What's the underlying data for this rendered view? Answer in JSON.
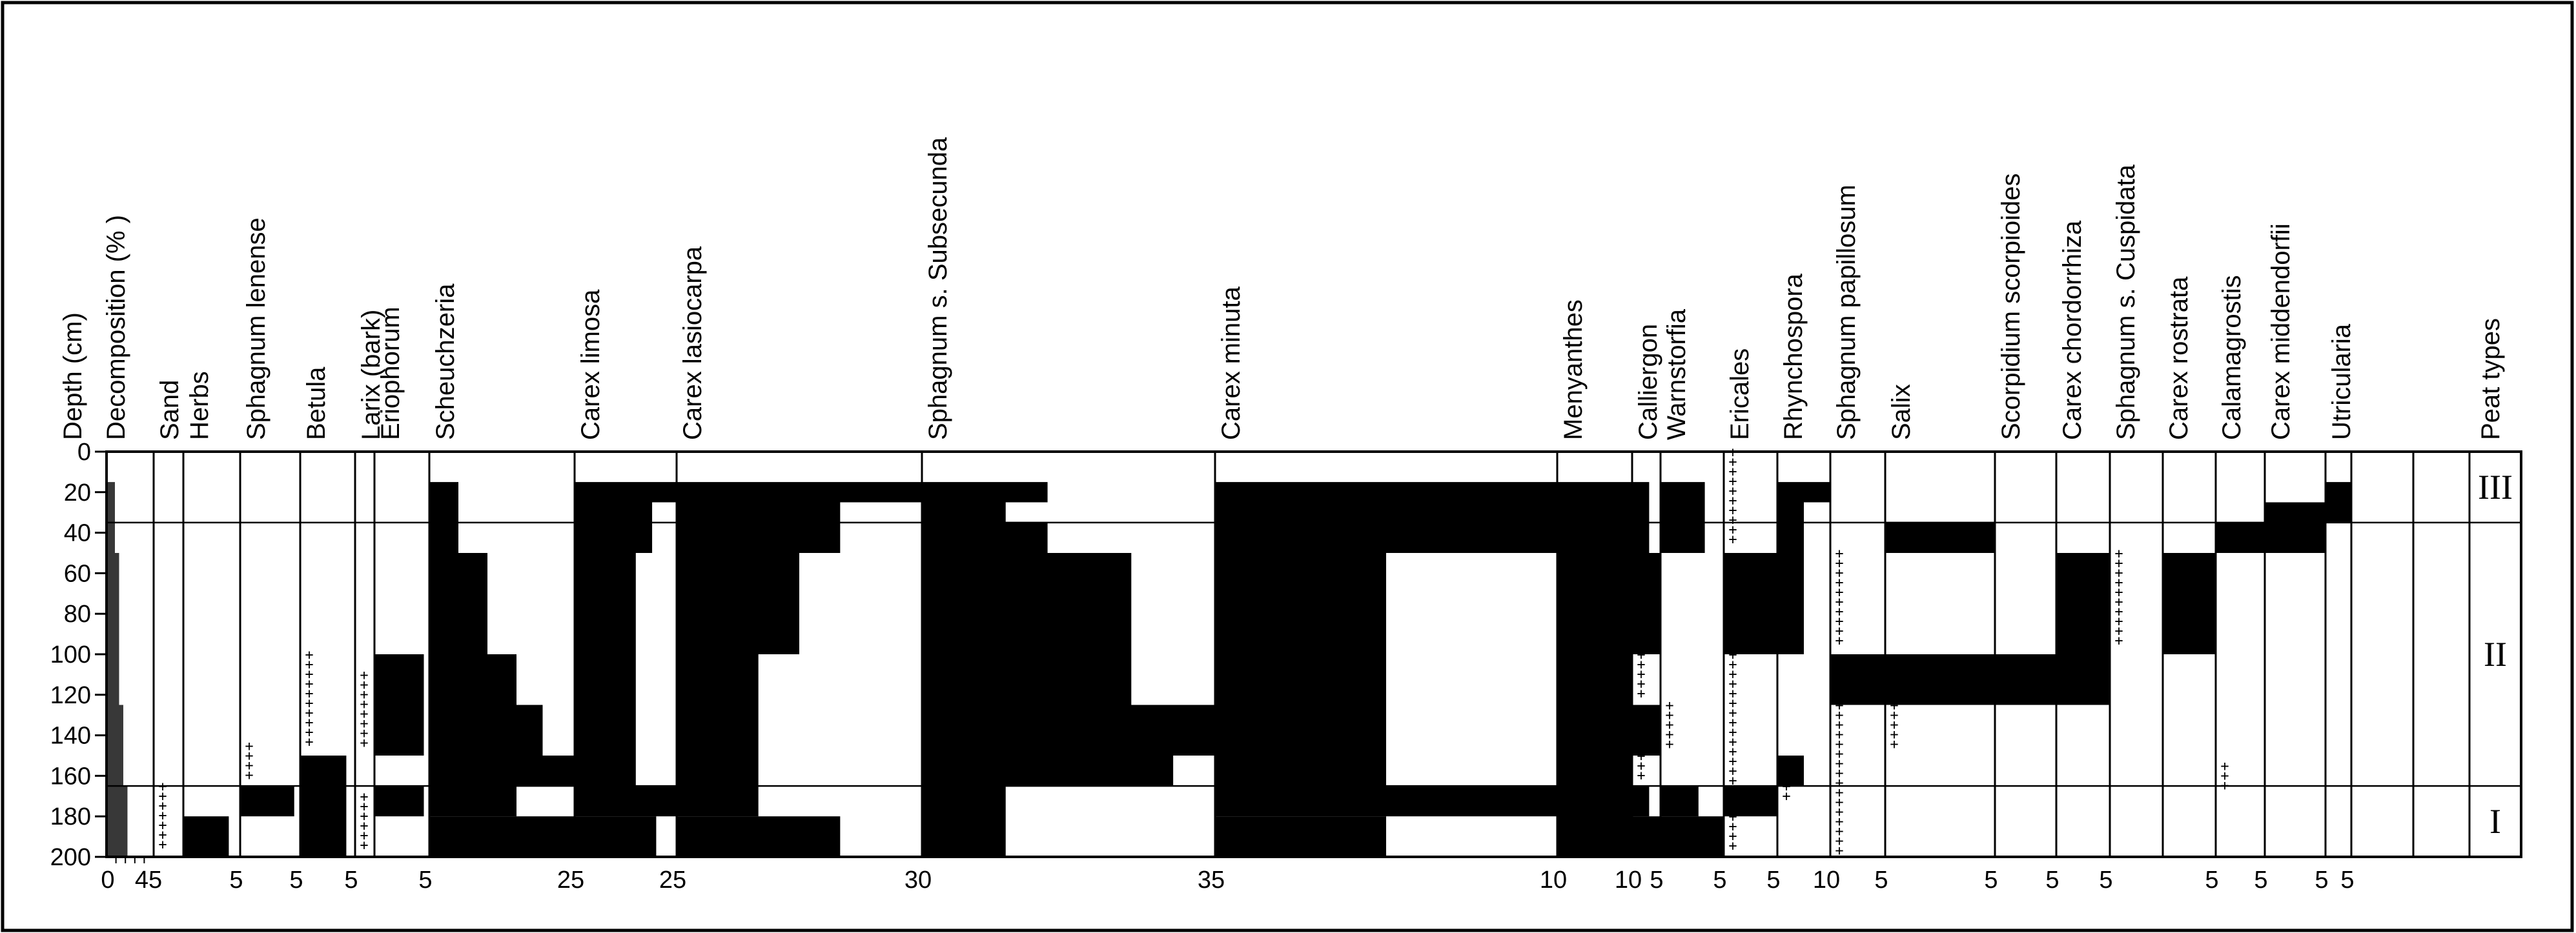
{
  "chart_data": {
    "type": "peat macrofossil stratigraphic diagram",
    "title": "",
    "y_axis": {
      "label": "Depth (cm)",
      "ticks": [
        0,
        20,
        40,
        60,
        80,
        100,
        120,
        140,
        160,
        180,
        200
      ],
      "range": [
        0,
        200
      ]
    },
    "zone_boundaries_cm": [
      35,
      165
    ],
    "peat_types": [
      {
        "label": "III",
        "from": 0,
        "to": 35
      },
      {
        "label": "II",
        "from": 35,
        "to": 165
      },
      {
        "label": "I",
        "from": 165,
        "to": 200
      }
    ],
    "decomposition": {
      "label": "Decomposition (% )",
      "axis_labels": [
        "0",
        "45"
      ],
      "max": 45,
      "steps": [
        {
          "from": 15,
          "to": 50,
          "value": 8
        },
        {
          "from": 50,
          "to": 125,
          "value": 12
        },
        {
          "from": 125,
          "to": 165,
          "value": 16
        },
        {
          "from": 165,
          "to": 200,
          "value": 20
        }
      ]
    },
    "taxa": [
      {
        "name": "Sand",
        "axis": "",
        "max": 5,
        "segments": [],
        "trace": [
          {
            "from": 165,
            "to": 200
          }
        ]
      },
      {
        "name": "Herbs",
        "axis": "5",
        "max": 5,
        "segments": [
          {
            "from": 180,
            "to": 200,
            "value": 4
          }
        ],
        "trace": []
      },
      {
        "name": "Sphagnum lenense",
        "axis": "5",
        "max": 5,
        "segments": [
          {
            "from": 165,
            "to": 180,
            "value": 4.5
          }
        ],
        "trace": [
          {
            "from": 145,
            "to": 165
          }
        ]
      },
      {
        "name": "Betula",
        "axis": "5",
        "max": 5,
        "segments": [
          {
            "from": 150,
            "to": 200,
            "value": 4.2
          }
        ],
        "trace": [
          {
            "from": 100,
            "to": 150
          }
        ]
      },
      {
        "name": "Larix (bark)",
        "axis": "",
        "max": 5,
        "segments": [],
        "trace": [
          {
            "from": 110,
            "to": 150
          },
          {
            "from": 170,
            "to": 200
          }
        ]
      },
      {
        "name": "Eriophorum",
        "axis": "5",
        "max": 5,
        "segments": [
          {
            "from": 100,
            "to": 150,
            "value": 4.5
          },
          {
            "from": 165,
            "to": 180,
            "value": 4.5
          }
        ],
        "trace": []
      },
      {
        "name": "Scheuchzeria",
        "axis": "25",
        "max": 25,
        "segments": [
          {
            "from": 15,
            "to": 50,
            "value": 5
          },
          {
            "from": 50,
            "to": 100,
            "value": 10
          },
          {
            "from": 100,
            "to": 125,
            "value": 15
          },
          {
            "from": 125,
            "to": 150,
            "value": 19.5
          },
          {
            "from": 150,
            "to": 165,
            "value": 25
          },
          {
            "from": 165,
            "to": 180,
            "value": 15
          },
          {
            "from": 180,
            "to": 200,
            "value": 25
          }
        ],
        "trace": []
      },
      {
        "name": "Carex limosa",
        "axis": "25",
        "max": 25,
        "segments": [
          {
            "from": 15,
            "to": 25,
            "value": 25
          },
          {
            "from": 25,
            "to": 50,
            "value": 19
          },
          {
            "from": 50,
            "to": 165,
            "value": 15
          },
          {
            "from": 165,
            "to": 180,
            "value": 25
          },
          {
            "from": 180,
            "to": 200,
            "value": 20
          }
        ],
        "trace": []
      },
      {
        "name": "Carex lasiocarpa",
        "axis": "30",
        "max": 30,
        "segments": [
          {
            "from": 15,
            "to": 25,
            "value": 30
          },
          {
            "from": 25,
            "to": 50,
            "value": 20
          },
          {
            "from": 50,
            "to": 100,
            "value": 15
          },
          {
            "from": 100,
            "to": 180,
            "value": 10
          },
          {
            "from": 180,
            "to": 200,
            "value": 20
          }
        ],
        "trace": []
      },
      {
        "name": "Sphagnum s. Subsecunda",
        "axis": "35",
        "max": 35,
        "segments": [
          {
            "from": 15,
            "to": 25,
            "value": 15
          },
          {
            "from": 25,
            "to": 35,
            "value": 10
          },
          {
            "from": 35,
            "to": 50,
            "value": 15
          },
          {
            "from": 50,
            "to": 125,
            "value": 25
          },
          {
            "from": 125,
            "to": 150,
            "value": 35
          },
          {
            "from": 150,
            "to": 165,
            "value": 30
          },
          {
            "from": 165,
            "to": 200,
            "value": 10
          }
        ],
        "trace": []
      },
      {
        "name": "Carex minuta",
        "axis": "10",
        "max": 10,
        "segments": [
          {
            "from": 15,
            "to": 50,
            "value": 10
          },
          {
            "from": 50,
            "to": 165,
            "value": 5
          },
          {
            "from": 165,
            "to": 180,
            "value": 10
          },
          {
            "from": 180,
            "to": 200,
            "value": 5
          }
        ],
        "trace": []
      },
      {
        "name": "Menyanthes",
        "axis": "10",
        "max": 10,
        "segments": [
          {
            "from": 15,
            "to": 200,
            "value": 10
          }
        ],
        "trace": []
      },
      {
        "name": "Calliergon",
        "axis": "5",
        "max": 5,
        "segments": [
          {
            "from": 15,
            "to": 50,
            "value": 3
          },
          {
            "from": 50,
            "to": 100,
            "value": 5
          },
          {
            "from": 125,
            "to": 150,
            "value": 5
          },
          {
            "from": 165,
            "to": 180,
            "value": 3
          },
          {
            "from": 180,
            "to": 200,
            "value": 5
          }
        ],
        "trace": [
          {
            "from": 100,
            "to": 125
          },
          {
            "from": 150,
            "to": 165
          }
        ]
      },
      {
        "name": "Warnstorfia",
        "axis": "5",
        "max": 5,
        "segments": [
          {
            "from": 15,
            "to": 50,
            "value": 3.5
          },
          {
            "from": 165,
            "to": 180,
            "value": 3
          },
          {
            "from": 180,
            "to": 200,
            "value": 5
          }
        ],
        "trace": [
          {
            "from": 125,
            "to": 150
          }
        ]
      },
      {
        "name": "Ericales",
        "axis": "5",
        "max": 5,
        "segments": [
          {
            "from": 50,
            "to": 100,
            "value": 5
          },
          {
            "from": 165,
            "to": 180,
            "value": 5
          }
        ],
        "trace": [
          {
            "from": 0,
            "to": 50
          },
          {
            "from": 100,
            "to": 165
          },
          {
            "from": 180,
            "to": 200
          }
        ]
      },
      {
        "name": "Rhynchospora",
        "axis": "10",
        "max": 10,
        "segments": [
          {
            "from": 15,
            "to": 25,
            "value": 10
          },
          {
            "from": 25,
            "to": 100,
            "value": 5
          },
          {
            "from": 150,
            "to": 165,
            "value": 5
          }
        ],
        "trace": [
          {
            "from": 165,
            "to": 175
          }
        ]
      },
      {
        "name": "Sphagnum papillosum",
        "axis": "5",
        "max": 5,
        "segments": [
          {
            "from": 100,
            "to": 125,
            "value": 5
          }
        ],
        "trace": [
          {
            "from": 50,
            "to": 100
          },
          {
            "from": 125,
            "to": 200
          }
        ]
      },
      {
        "name": "Salix",
        "axis": "5",
        "max": 5,
        "segments": [
          {
            "from": 35,
            "to": 50,
            "value": 5
          },
          {
            "from": 100,
            "to": 125,
            "value": 5
          }
        ],
        "trace": [
          {
            "from": 125,
            "to": 150
          }
        ]
      },
      {
        "name": "Scorpidium scorpioides",
        "axis": "5",
        "max": 5,
        "segments": [
          {
            "from": 100,
            "to": 125,
            "value": 5
          }
        ],
        "trace": []
      },
      {
        "name": "Carex chordorrhiza",
        "axis": "5",
        "max": 5,
        "segments": [
          {
            "from": 50,
            "to": 125,
            "value": 5
          }
        ],
        "trace": []
      },
      {
        "name": "Sphagnum s. Cuspidata",
        "axis": "",
        "max": 5,
        "segments": [],
        "trace": [
          {
            "from": 50,
            "to": 100
          }
        ]
      },
      {
        "name": "Carex rostrata",
        "axis": "5",
        "max": 5,
        "segments": [
          {
            "from": 50,
            "to": 100,
            "value": 5
          }
        ],
        "trace": []
      },
      {
        "name": "Calamagrostis",
        "axis": "5",
        "max": 5,
        "segments": [
          {
            "from": 35,
            "to": 50,
            "value": 5
          }
        ],
        "trace": [
          {
            "from": 155,
            "to": 170
          }
        ]
      },
      {
        "name": "Carex middendorfii",
        "axis": "5",
        "max": 5,
        "segments": [
          {
            "from": 25,
            "to": 50,
            "value": 5
          }
        ],
        "trace": []
      },
      {
        "name": "Utricularia",
        "axis": "5",
        "max": 5,
        "segments": [
          {
            "from": 15,
            "to": 35,
            "value": 5
          }
        ],
        "trace": []
      }
    ],
    "last_column_label": "Peat types"
  }
}
